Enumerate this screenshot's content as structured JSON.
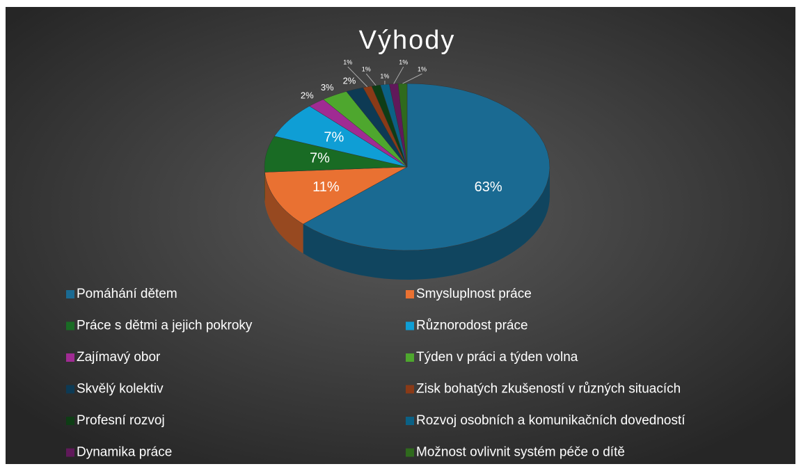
{
  "chart_data": {
    "type": "pie3d",
    "title": "Výhody",
    "categories": [
      "Pomáhání dětem",
      "Smysluplnost práce",
      "Práce s dětmi a jejich pokroky",
      "Různorodost práce",
      "Zajímavý obor",
      "Týden v práci a týden volna",
      "Skvělý kolektiv",
      "Zisk bohatých zkušeností v různých situacích",
      "Profesní rozvoj",
      "Rozvoj osobních a komunikačních dovedností",
      "Dynamika práce",
      "Možnost ovlivnit systém péče o dítě"
    ],
    "values": [
      63,
      11,
      7,
      7,
      2,
      3,
      2,
      1,
      1,
      1,
      1,
      1
    ],
    "value_labels": [
      "63%",
      "11%",
      "7%",
      "7%",
      "2%",
      "3%",
      "2%",
      "1%",
      "1%",
      "1%",
      "1%",
      "1%"
    ],
    "colors": [
      "#1a6a92",
      "#e97132",
      "#196b24",
      "#0f9ed5",
      "#a02b93",
      "#4ea72e",
      "#0d3a54",
      "#8a3a17",
      "#0e3d15",
      "#0b6185",
      "#60195a",
      "#2f6a1d"
    ],
    "legend": "bottom"
  }
}
